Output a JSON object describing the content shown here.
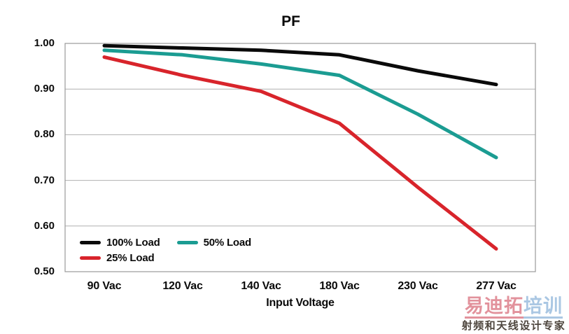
{
  "chart_data": {
    "type": "line",
    "title": "PF",
    "xlabel": "Input Voltage",
    "ylabel": "",
    "categories": [
      "90 Vac",
      "120 Vac",
      "140 Vac",
      "180 Vac",
      "230 Vac",
      "277 Vac"
    ],
    "y_ticks": [
      "1.00",
      "0.90",
      "0.80",
      "0.70",
      "0.60",
      "0.50"
    ],
    "y_tick_values": [
      1.0,
      0.9,
      0.8,
      0.7,
      0.6,
      0.5
    ],
    "ylim": [
      0.5,
      1.0
    ],
    "grid": "horizontal",
    "legend_position": "inside-bottom-left",
    "colors": {
      "gridline": "#b0b0b0",
      "plot_border": "#999999",
      "text": "#0a0a0a"
    },
    "series": [
      {
        "name": "100% Load",
        "color": "#0a0a0a",
        "values": [
          0.995,
          0.99,
          0.985,
          0.975,
          0.94,
          0.91
        ]
      },
      {
        "name": "50% Load",
        "color": "#1b9c92",
        "values": [
          0.985,
          0.975,
          0.955,
          0.93,
          0.845,
          0.75
        ]
      },
      {
        "name": "25% Load",
        "color": "#d8242b",
        "values": [
          0.97,
          0.93,
          0.895,
          0.825,
          0.685,
          0.55
        ]
      }
    ]
  },
  "watermark": {
    "brand_primary": "易迪拓",
    "brand_primary_color": "#e2929c",
    "brand_secondary": "培训",
    "brand_secondary_color": "#aac7e3",
    "tagline": "射频和天线设计专家",
    "tagline_color": "#4e463e"
  }
}
